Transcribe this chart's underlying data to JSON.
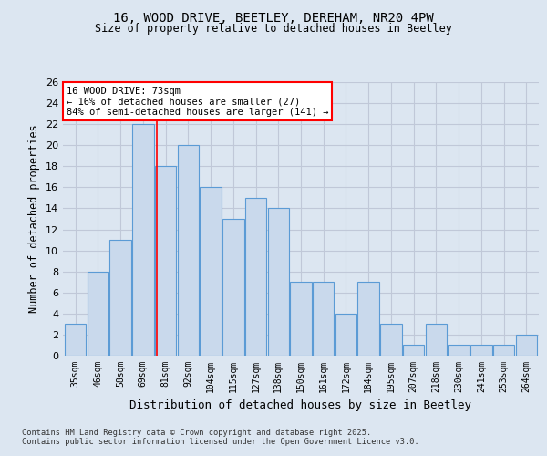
{
  "title1": "16, WOOD DRIVE, BEETLEY, DEREHAM, NR20 4PW",
  "title2": "Size of property relative to detached houses in Beetley",
  "xlabel": "Distribution of detached houses by size in Beetley",
  "ylabel": "Number of detached properties",
  "categories": [
    "35sqm",
    "46sqm",
    "58sqm",
    "69sqm",
    "81sqm",
    "92sqm",
    "104sqm",
    "115sqm",
    "127sqm",
    "138sqm",
    "150sqm",
    "161sqm",
    "172sqm",
    "184sqm",
    "195sqm",
    "207sqm",
    "218sqm",
    "230sqm",
    "241sqm",
    "253sqm",
    "264sqm"
  ],
  "values": [
    3,
    8,
    11,
    22,
    18,
    20,
    16,
    13,
    15,
    14,
    7,
    7,
    4,
    7,
    3,
    1,
    3,
    1,
    1,
    1,
    2
  ],
  "bar_color": "#c9d9ec",
  "bar_edge_color": "#5b9bd5",
  "grid_color": "#c0c8d8",
  "background_color": "#dce6f1",
  "red_line_x": 3.63,
  "annotation_title": "16 WOOD DRIVE: 73sqm",
  "annotation_line1": "← 16% of detached houses are smaller (27)",
  "annotation_line2": "84% of semi-detached houses are larger (141) →",
  "footnote1": "Contains HM Land Registry data © Crown copyright and database right 2025.",
  "footnote2": "Contains public sector information licensed under the Open Government Licence v3.0.",
  "ylim": [
    0,
    26
  ],
  "yticks": [
    0,
    2,
    4,
    6,
    8,
    10,
    12,
    14,
    16,
    18,
    20,
    22,
    24,
    26
  ]
}
